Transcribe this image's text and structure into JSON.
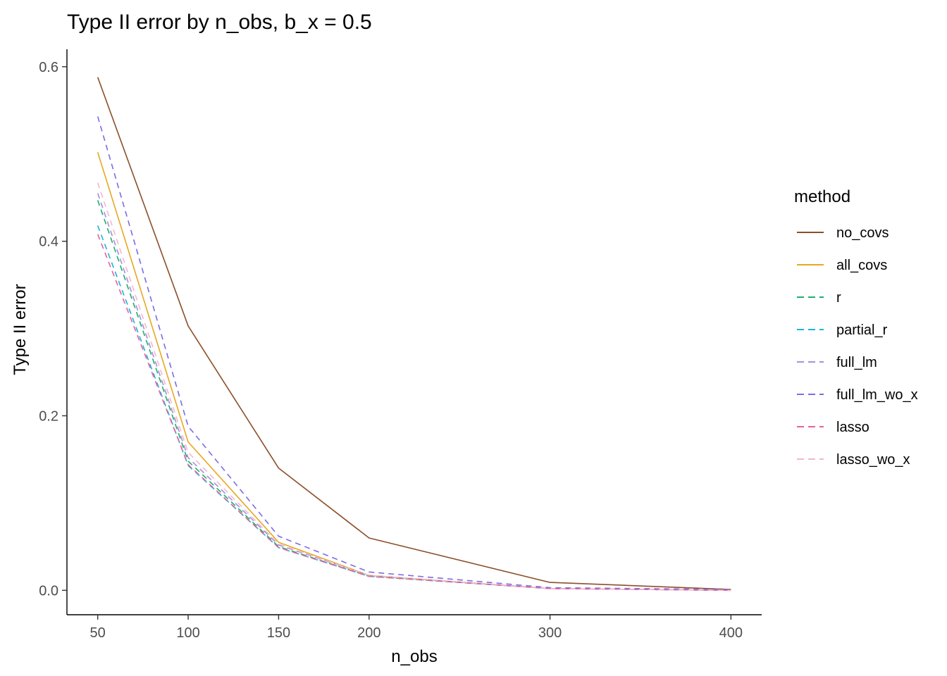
{
  "chart_data": {
    "type": "line",
    "title": "Type II error by n_obs, b_x = 0.5",
    "xlabel": "n_obs",
    "ylabel": "Type II error",
    "x": [
      50,
      100,
      150,
      200,
      300,
      400
    ],
    "xlim": [
      33,
      417
    ],
    "ylim": [
      -0.028,
      0.62
    ],
    "xticks": [
      50,
      100,
      150,
      200,
      300,
      400
    ],
    "yticks": [
      0.0,
      0.2,
      0.4,
      0.6
    ],
    "ytick_labels": [
      "0.0",
      "0.2",
      "0.4",
      "0.6"
    ],
    "grid": false,
    "legend": {
      "title": "method",
      "position": "right"
    },
    "series": [
      {
        "name": "no_covs",
        "color": "#8B4F2A",
        "dashed": false,
        "values": [
          0.588,
          0.303,
          0.14,
          0.06,
          0.009,
          0.001
        ]
      },
      {
        "name": "all_covs",
        "color": "#E6A820",
        "dashed": false,
        "values": [
          0.502,
          0.17,
          0.055,
          0.017,
          0.002,
          0.0
        ]
      },
      {
        "name": "r",
        "color": "#1DB06A",
        "dashed": true,
        "values": [
          0.447,
          0.148,
          0.05,
          0.016,
          0.002,
          0.0
        ]
      },
      {
        "name": "partial_r",
        "color": "#17B7D9",
        "dashed": true,
        "values": [
          0.418,
          0.143,
          0.049,
          0.016,
          0.002,
          0.0
        ]
      },
      {
        "name": "full_lm",
        "color": "#A58FE0",
        "dashed": true,
        "values": [
          0.455,
          0.152,
          0.052,
          0.017,
          0.002,
          0.0
        ]
      },
      {
        "name": "full_lm_wo_x",
        "color": "#7A6CE8",
        "dashed": true,
        "values": [
          0.543,
          0.188,
          0.062,
          0.021,
          0.003,
          0.001
        ]
      },
      {
        "name": "lasso",
        "color": "#E8609E",
        "dashed": true,
        "values": [
          0.408,
          0.144,
          0.049,
          0.016,
          0.002,
          0.0
        ]
      },
      {
        "name": "lasso_wo_x",
        "color": "#F4B6CF",
        "dashed": true,
        "values": [
          0.467,
          0.158,
          0.053,
          0.017,
          0.002,
          0.0
        ]
      }
    ]
  }
}
